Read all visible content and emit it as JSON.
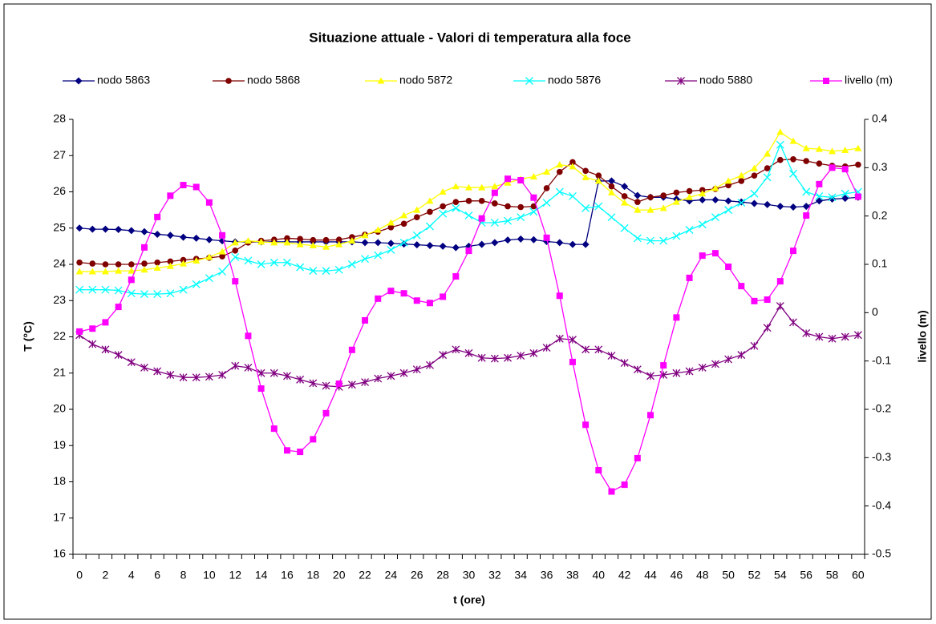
{
  "chart_data": {
    "type": "line",
    "title": "Situazione attuale - Valori di temperatura alla foce",
    "xlabel": "t (ore)",
    "ylabel": "T (°C)",
    "y2label": "livello (m)",
    "categories": [
      "0",
      null,
      "2",
      null,
      "4",
      null,
      "6",
      null,
      "8",
      null,
      "10",
      null,
      "12",
      null,
      "14",
      null,
      "16",
      null,
      "18",
      null,
      "20",
      null,
      "22",
      null,
      "24",
      null,
      "26",
      null,
      "28",
      null,
      "30",
      null,
      "32",
      null,
      "34",
      null,
      "36",
      null,
      "38",
      null,
      "40",
      null,
      "42",
      null,
      "44",
      null,
      "46",
      null,
      "48",
      null,
      "50",
      null,
      "52",
      null,
      "54",
      null,
      "56",
      null,
      "58",
      null,
      "60"
    ],
    "ylim": [
      16,
      28
    ],
    "yticks": [
      16,
      17,
      18,
      19,
      20,
      21,
      22,
      23,
      24,
      25,
      26,
      27,
      28
    ],
    "y2lim": [
      -0.5,
      0.4
    ],
    "y2ticks": [
      -0.5,
      -0.4,
      -0.3,
      -0.2,
      -0.1,
      0,
      0.1,
      0.2,
      0.3,
      0.4
    ],
    "grid": false,
    "legend": "top",
    "series": [
      {
        "name": "nodo 5863",
        "color": "#000080",
        "marker": "diamond",
        "values": [
          25.0,
          24.97,
          24.97,
          24.96,
          24.93,
          24.9,
          24.83,
          24.8,
          24.75,
          24.72,
          24.68,
          24.65,
          24.62,
          24.62,
          24.62,
          24.62,
          24.62,
          24.62,
          24.62,
          24.62,
          24.62,
          24.62,
          24.6,
          24.6,
          24.58,
          24.56,
          24.54,
          24.52,
          24.5,
          24.46,
          24.5,
          24.55,
          24.6,
          24.67,
          24.7,
          24.68,
          24.63,
          24.6,
          24.55,
          24.55,
          26.3,
          26.3,
          26.15,
          25.9,
          25.85,
          25.85,
          25.8,
          25.75,
          25.78,
          25.78,
          25.75,
          25.72,
          25.68,
          25.65,
          25.6,
          25.58,
          25.6,
          25.75,
          25.8,
          25.82,
          25.85
        ]
      },
      {
        "name": "nodo 5868",
        "color": "#800000",
        "marker": "circle",
        "values": [
          24.05,
          24.02,
          24.0,
          24.0,
          24.0,
          24.02,
          24.05,
          24.08,
          24.12,
          24.15,
          24.18,
          24.22,
          24.38,
          24.6,
          24.65,
          24.68,
          24.72,
          24.7,
          24.67,
          24.67,
          24.68,
          24.75,
          24.82,
          24.9,
          25.02,
          25.12,
          25.3,
          25.45,
          25.6,
          25.72,
          25.75,
          25.75,
          25.68,
          25.6,
          25.58,
          25.6,
          26.1,
          26.55,
          26.82,
          26.58,
          26.45,
          26.15,
          25.88,
          25.72,
          25.85,
          25.9,
          25.98,
          26.02,
          26.05,
          26.08,
          26.18,
          26.3,
          26.45,
          26.65,
          26.88,
          26.9,
          26.85,
          26.78,
          26.72,
          26.7,
          26.75
        ]
      },
      {
        "name": "nodo 5872",
        "color": "#ffff00",
        "marker": "triangle",
        "values": [
          23.8,
          23.8,
          23.8,
          23.82,
          23.82,
          23.85,
          23.9,
          23.95,
          24.02,
          24.1,
          24.2,
          24.35,
          24.6,
          24.65,
          24.62,
          24.6,
          24.6,
          24.55,
          24.52,
          24.48,
          24.55,
          24.65,
          24.8,
          24.95,
          25.15,
          25.35,
          25.5,
          25.75,
          26.0,
          26.15,
          26.12,
          26.12,
          26.15,
          26.25,
          26.35,
          26.42,
          26.55,
          26.75,
          26.7,
          26.4,
          26.3,
          25.98,
          25.7,
          25.5,
          25.5,
          25.55,
          25.72,
          25.85,
          25.95,
          26.1,
          26.3,
          26.45,
          26.65,
          27.05,
          27.65,
          27.4,
          27.2,
          27.18,
          27.12,
          27.15,
          27.2
        ]
      },
      {
        "name": "nodo 5876",
        "color": "#00ffff",
        "marker": "x",
        "values": [
          23.3,
          23.3,
          23.3,
          23.28,
          23.2,
          23.18,
          23.18,
          23.2,
          23.3,
          23.45,
          23.62,
          23.8,
          24.2,
          24.1,
          24.0,
          24.05,
          24.05,
          23.92,
          23.82,
          23.82,
          23.85,
          24.0,
          24.15,
          24.25,
          24.4,
          24.6,
          24.8,
          25.05,
          25.4,
          25.55,
          25.35,
          25.15,
          25.15,
          25.2,
          25.3,
          25.45,
          25.7,
          26.0,
          25.88,
          25.55,
          25.6,
          25.3,
          25.0,
          24.72,
          24.65,
          24.65,
          24.78,
          24.95,
          25.1,
          25.3,
          25.5,
          25.7,
          25.95,
          26.4,
          27.3,
          26.5,
          26.0,
          25.88,
          25.85,
          25.95,
          26.0
        ]
      },
      {
        "name": "nodo 5880",
        "color": "#800080",
        "marker": "star",
        "values": [
          22.05,
          21.8,
          21.65,
          21.5,
          21.3,
          21.15,
          21.05,
          20.95,
          20.88,
          20.88,
          20.9,
          20.95,
          21.2,
          21.15,
          21.0,
          21.0,
          20.92,
          20.82,
          20.72,
          20.65,
          20.62,
          20.68,
          20.75,
          20.85,
          20.92,
          21.0,
          21.1,
          21.22,
          21.5,
          21.65,
          21.55,
          21.42,
          21.4,
          21.42,
          21.48,
          21.55,
          21.7,
          21.95,
          21.92,
          21.65,
          21.65,
          21.48,
          21.28,
          21.1,
          20.92,
          20.95,
          21.0,
          21.05,
          21.15,
          21.25,
          21.38,
          21.5,
          21.75,
          22.25,
          22.85,
          22.4,
          22.1,
          22.0,
          21.95,
          22.0,
          22.05
        ]
      },
      {
        "name": "livello (m)",
        "color": "#ff00ff",
        "marker": "square",
        "axis": "y2",
        "values": [
          -0.039,
          -0.033,
          -0.02,
          0.012,
          0.068,
          0.135,
          0.198,
          0.242,
          0.264,
          0.26,
          0.228,
          0.16,
          0.065,
          -0.048,
          -0.157,
          -0.24,
          -0.285,
          -0.288,
          -0.262,
          -0.208,
          -0.147,
          -0.077,
          -0.016,
          0.029,
          0.045,
          0.04,
          0.025,
          0.02,
          0.033,
          0.075,
          0.128,
          0.195,
          0.248,
          0.277,
          0.274,
          0.238,
          0.155,
          0.035,
          -0.102,
          -0.232,
          -0.326,
          -0.37,
          -0.356,
          -0.301,
          -0.212,
          -0.109,
          -0.01,
          0.072,
          0.118,
          0.123,
          0.095,
          0.055,
          0.024,
          0.027,
          0.065,
          0.128,
          0.201,
          0.266,
          0.3,
          0.297,
          0.24
        ]
      }
    ]
  }
}
